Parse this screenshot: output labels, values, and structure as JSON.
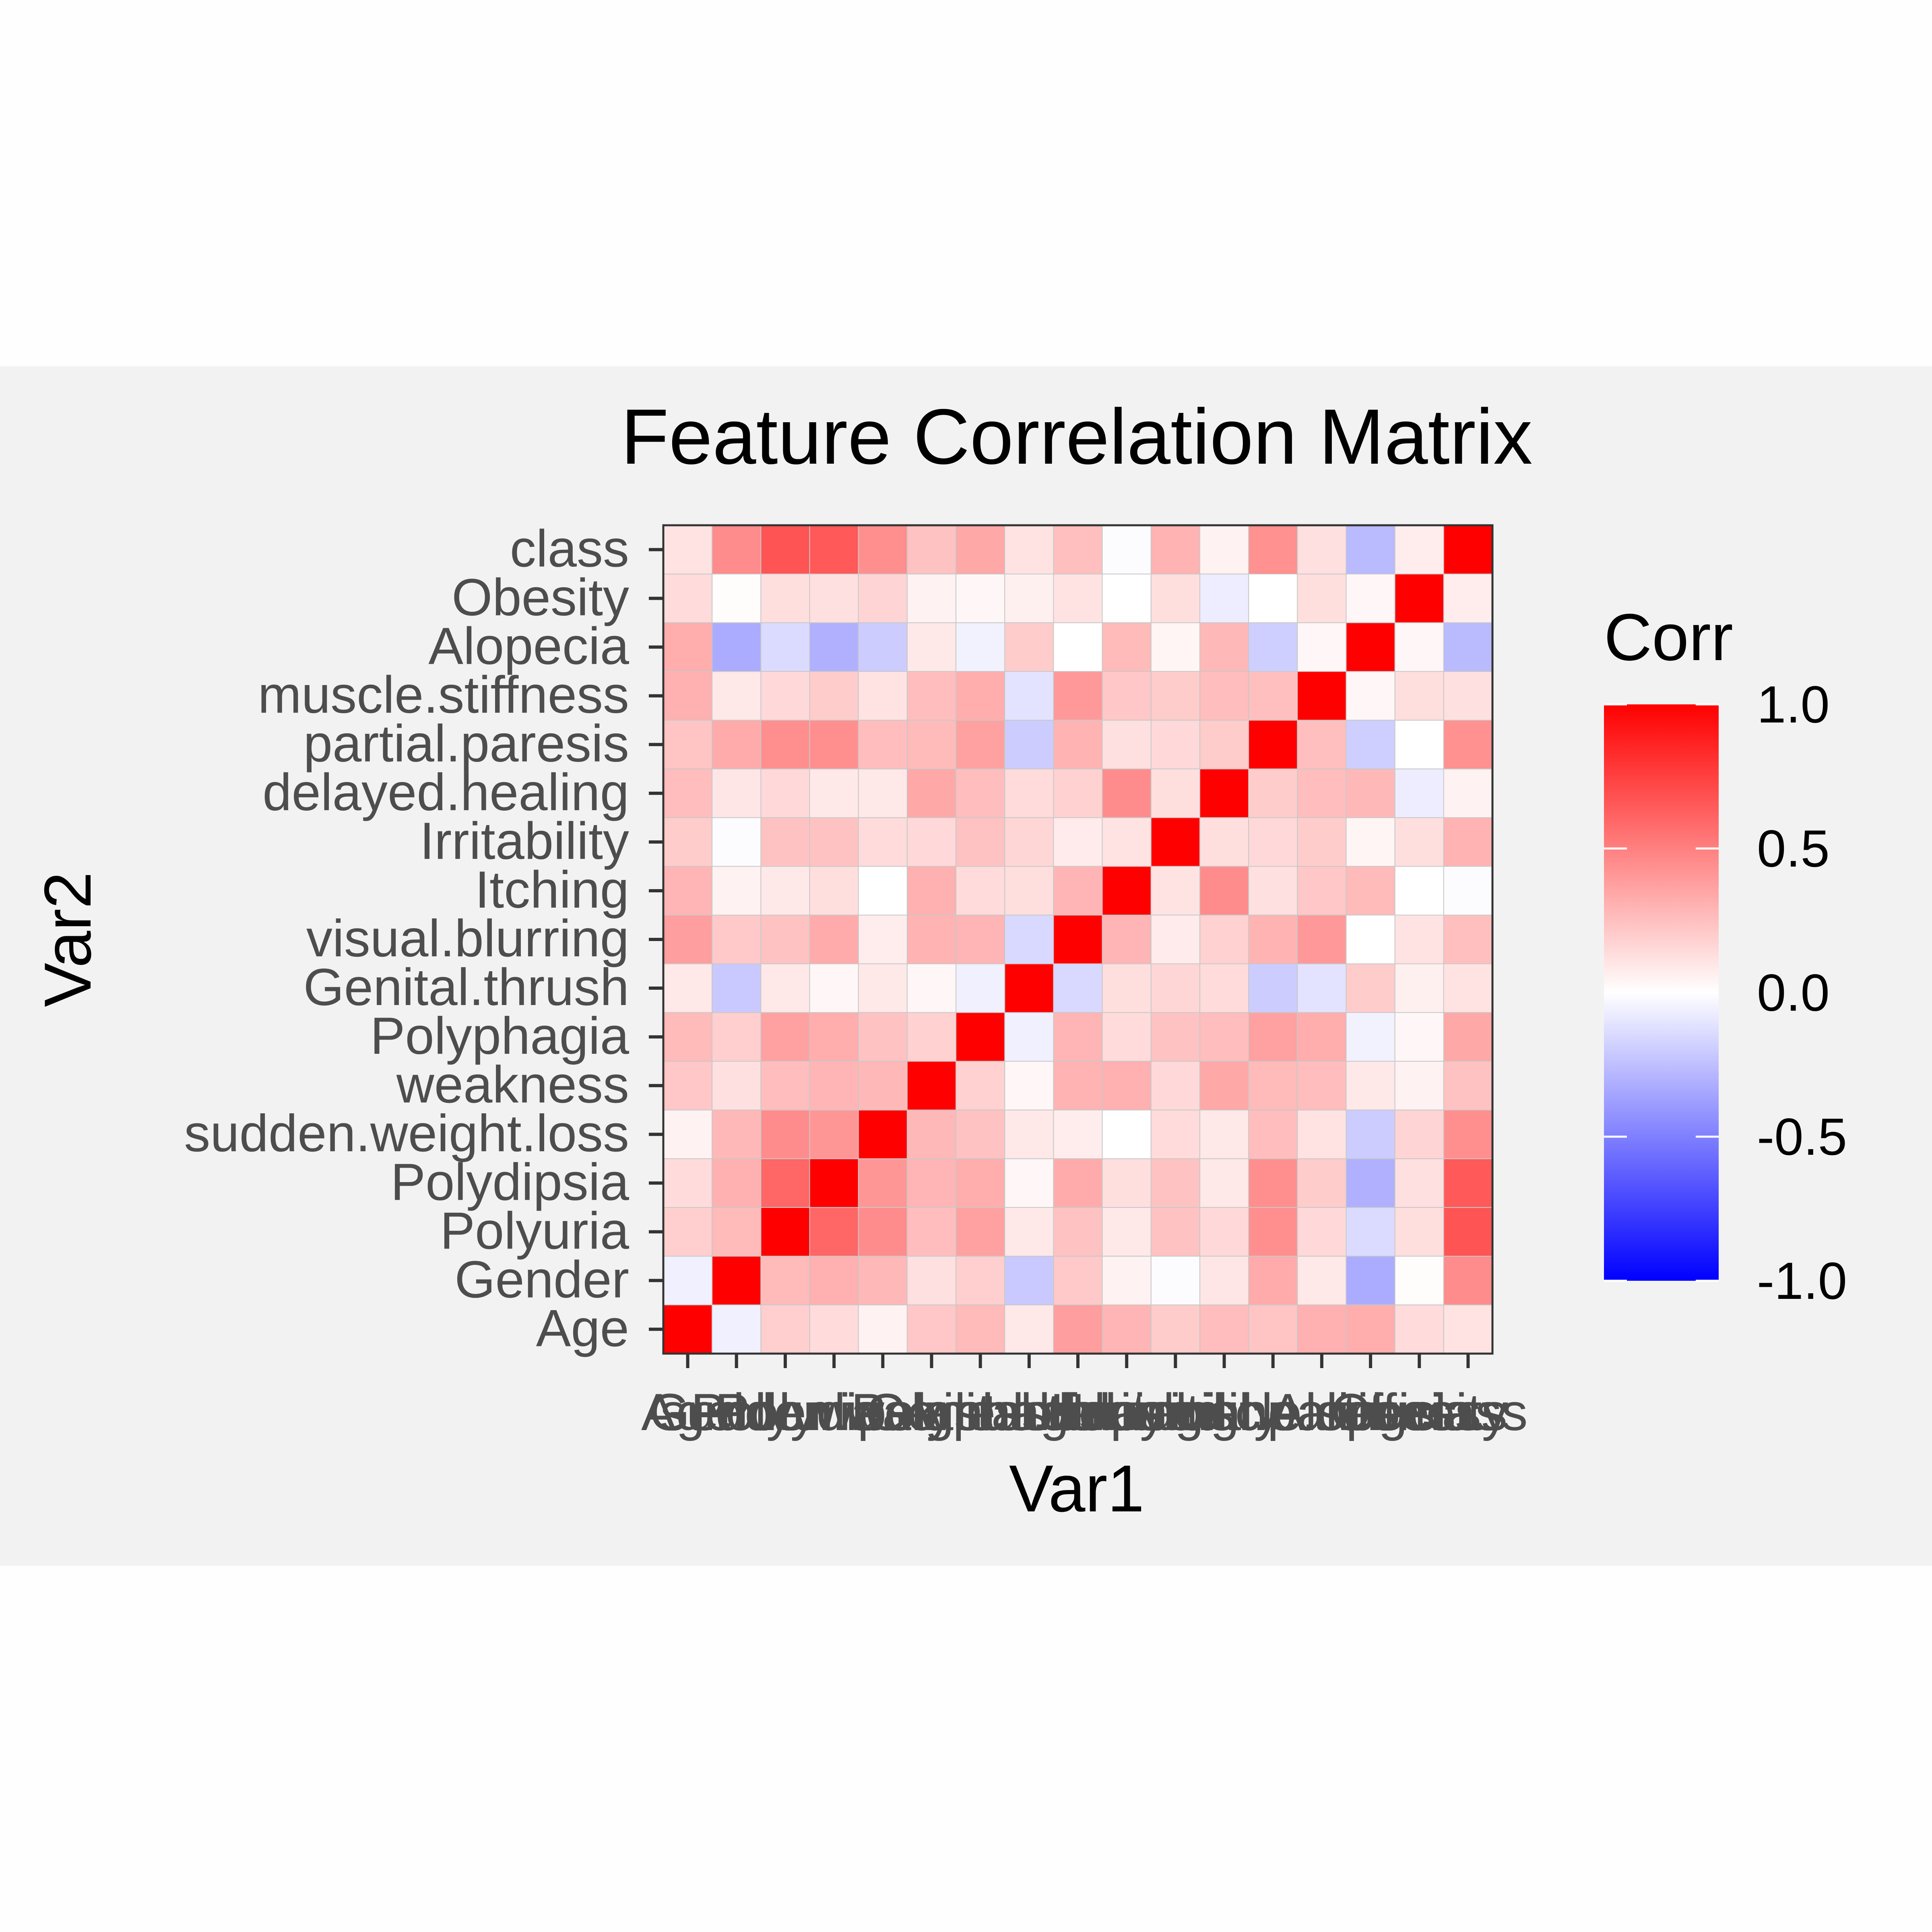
{
  "chart_data": {
    "type": "heatmap",
    "title": "Feature Correlation Matrix",
    "xlabel": "Var1",
    "ylabel": "Var2",
    "variables": [
      "Age",
      "Gender",
      "Polyuria",
      "Polydipsia",
      "sudden.weight.loss",
      "weakness",
      "Polyphagia",
      "Genital.thrush",
      "visual.blurring",
      "Itching",
      "Irritability",
      "delayed.healing",
      "partial.paresis",
      "muscle.stiffness",
      "Alopecia",
      "Obesity",
      "class"
    ],
    "matrix": [
      [
        1.0,
        -0.06,
        0.19,
        0.14,
        0.05,
        0.22,
        0.27,
        0.09,
        0.38,
        0.29,
        0.2,
        0.26,
        0.23,
        0.31,
        0.32,
        0.14,
        0.11
      ],
      [
        -0.06,
        1.0,
        0.27,
        0.31,
        0.28,
        0.12,
        0.19,
        -0.21,
        0.21,
        0.05,
        -0.01,
        0.1,
        0.33,
        0.09,
        -0.33,
        0.01,
        0.45
      ],
      [
        0.19,
        0.27,
        1.0,
        0.6,
        0.45,
        0.26,
        0.37,
        0.09,
        0.24,
        0.09,
        0.24,
        0.15,
        0.44,
        0.15,
        -0.14,
        0.13,
        0.67
      ],
      [
        0.14,
        0.31,
        0.6,
        1.0,
        0.41,
        0.29,
        0.32,
        0.03,
        0.33,
        0.13,
        0.24,
        0.09,
        0.44,
        0.2,
        -0.31,
        0.12,
        0.65
      ],
      [
        0.05,
        0.28,
        0.45,
        0.41,
        1.0,
        0.28,
        0.24,
        0.09,
        0.07,
        -0.0,
        0.14,
        0.09,
        0.26,
        0.11,
        -0.2,
        0.17,
        0.44
      ],
      [
        0.22,
        0.12,
        0.26,
        0.29,
        0.28,
        1.0,
        0.18,
        0.03,
        0.3,
        0.31,
        0.15,
        0.34,
        0.27,
        0.26,
        0.09,
        0.05,
        0.24
      ],
      [
        0.27,
        0.19,
        0.37,
        0.32,
        0.24,
        0.18,
        1.0,
        -0.06,
        0.29,
        0.14,
        0.24,
        0.26,
        0.37,
        0.32,
        -0.05,
        0.03,
        0.34
      ],
      [
        0.09,
        -0.21,
        0.09,
        0.03,
        0.09,
        0.03,
        -0.06,
        1.0,
        -0.15,
        0.13,
        0.16,
        0.14,
        -0.2,
        -0.11,
        0.2,
        0.06,
        0.11
      ],
      [
        0.38,
        0.21,
        0.24,
        0.33,
        0.07,
        0.3,
        0.29,
        -0.15,
        1.0,
        0.29,
        0.08,
        0.18,
        0.3,
        0.4,
        0.0,
        0.11,
        0.25
      ],
      [
        0.29,
        0.05,
        0.09,
        0.13,
        -0.0,
        0.31,
        0.14,
        0.13,
        0.29,
        1.0,
        0.11,
        0.45,
        0.12,
        0.22,
        0.27,
        0.0,
        -0.01
      ],
      [
        0.2,
        -0.01,
        0.24,
        0.24,
        0.14,
        0.15,
        0.24,
        0.16,
        0.08,
        0.11,
        1.0,
        0.13,
        0.15,
        0.2,
        0.04,
        0.13,
        0.3
      ],
      [
        0.26,
        0.1,
        0.15,
        0.09,
        0.09,
        0.34,
        0.26,
        0.14,
        0.18,
        0.45,
        0.13,
        1.0,
        0.2,
        0.26,
        0.28,
        -0.07,
        0.05
      ],
      [
        0.23,
        0.33,
        0.44,
        0.44,
        0.26,
        0.27,
        0.37,
        -0.2,
        0.3,
        0.12,
        0.15,
        0.2,
        1.0,
        0.25,
        -0.19,
        0.0,
        0.43
      ],
      [
        0.31,
        0.09,
        0.15,
        0.2,
        0.11,
        0.26,
        0.32,
        -0.11,
        0.4,
        0.22,
        0.2,
        0.26,
        0.25,
        1.0,
        0.03,
        0.13,
        0.12
      ],
      [
        0.32,
        -0.33,
        -0.14,
        -0.31,
        -0.2,
        0.09,
        -0.05,
        0.2,
        0.0,
        0.27,
        0.04,
        0.28,
        -0.19,
        0.03,
        1.0,
        0.03,
        -0.27
      ],
      [
        0.14,
        0.01,
        0.13,
        0.12,
        0.17,
        0.05,
        0.03,
        0.06,
        0.11,
        0.0,
        0.13,
        -0.07,
        0.0,
        0.13,
        0.03,
        1.0,
        0.07
      ],
      [
        0.11,
        0.45,
        0.67,
        0.65,
        0.44,
        0.24,
        0.34,
        0.11,
        0.25,
        -0.01,
        0.3,
        0.05,
        0.43,
        0.12,
        -0.27,
        0.07,
        1.0
      ]
    ],
    "legend": {
      "title": "Corr",
      "range": [
        -1.0,
        1.0
      ],
      "tick_values": [
        1.0,
        0.5,
        0.0,
        -0.5,
        -1.0
      ],
      "tick_labels": [
        "1.0",
        "0.5",
        "0.0",
        "-0.5",
        "-1.0"
      ],
      "placement": "right"
    },
    "colors": {
      "low": "#0000ff",
      "mid": "#ffffff",
      "high": "#ff0000"
    }
  }
}
